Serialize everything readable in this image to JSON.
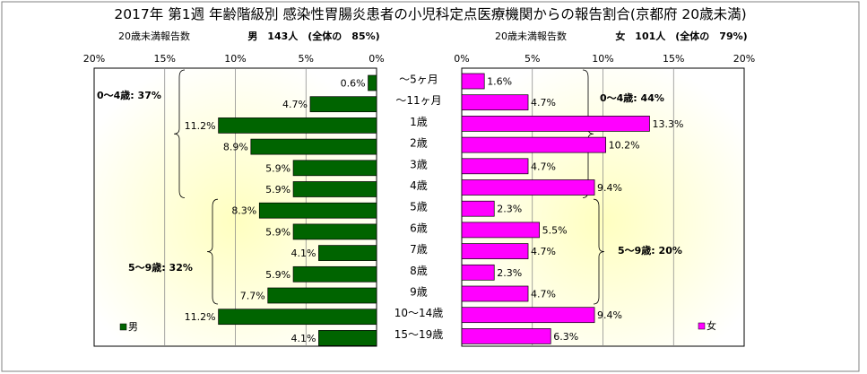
{
  "title": "2017年 第1週 年齢階級別 感染性胃腸炎患者の小児科定点医療機関からの報告割合(京都府 20歳未満)",
  "age_labels": [
    "～5ヶ月",
    "～11ヶ月",
    "1歳",
    "2歳",
    "3歳",
    "4歳",
    "5歳",
    "6歳",
    "7歳",
    "8歳",
    "9歳",
    "10～14歳",
    "15～19歳"
  ],
  "colors": {
    "male": "#006400",
    "female": "#ff00ff"
  },
  "chart_data": [
    {
      "type": "bar",
      "orientation": "horizontal-reversed",
      "header_left": "20歳未満報告数",
      "header_right": "男　143人　(全体の　85%)",
      "xlim": [
        0,
        20
      ],
      "x_ticks": [
        "20%",
        "15%",
        "10%",
        "5%",
        "0%"
      ],
      "categories": [
        "～5ヶ月",
        "～11ヶ月",
        "1歳",
        "2歳",
        "3歳",
        "4歳",
        "5歳",
        "6歳",
        "7歳",
        "8歳",
        "9歳",
        "10～14歳",
        "15～19歳"
      ],
      "values": [
        0.6,
        4.7,
        11.2,
        8.9,
        5.9,
        5.9,
        8.3,
        5.9,
        4.1,
        5.9,
        7.7,
        11.2,
        4.1
      ],
      "value_labels": [
        "0.6%",
        "4.7%",
        "11.2%",
        "8.9%",
        "5.9%",
        "5.9%",
        "8.3%",
        "5.9%",
        "4.1%",
        "5.9%",
        "7.7%",
        "11.2%",
        "4.1%"
      ],
      "legend": "男",
      "annotations": [
        {
          "label": "0～4歳: 37%",
          "from": 0,
          "to": 5
        },
        {
          "label": "5～9歳: 32%",
          "from": 6,
          "to": 10
        }
      ]
    },
    {
      "type": "bar",
      "orientation": "horizontal",
      "header_left": "20歳未満報告数",
      "header_right": "女　101人　(全体の　79%)",
      "xlim": [
        0,
        20
      ],
      "x_ticks": [
        "0%",
        "5%",
        "10%",
        "15%",
        "20%"
      ],
      "categories": [
        "～5ヶ月",
        "～11ヶ月",
        "1歳",
        "2歳",
        "3歳",
        "4歳",
        "5歳",
        "6歳",
        "7歳",
        "8歳",
        "9歳",
        "10～14歳",
        "15～19歳"
      ],
      "values": [
        1.6,
        4.7,
        13.3,
        10.2,
        4.7,
        9.4,
        2.3,
        5.5,
        4.7,
        2.3,
        4.7,
        9.4,
        6.3
      ],
      "value_labels": [
        "1.6%",
        "4.7%",
        "13.3%",
        "10.2%",
        "4.7%",
        "9.4%",
        "2.3%",
        "5.5%",
        "4.7%",
        "2.3%",
        "4.7%",
        "9.4%",
        "6.3%"
      ],
      "legend": "女",
      "annotations": [
        {
          "label": "0～4歳: 44%",
          "from": 0,
          "to": 5
        },
        {
          "label": "5～9歳: 20%",
          "from": 6,
          "to": 10
        }
      ]
    }
  ]
}
